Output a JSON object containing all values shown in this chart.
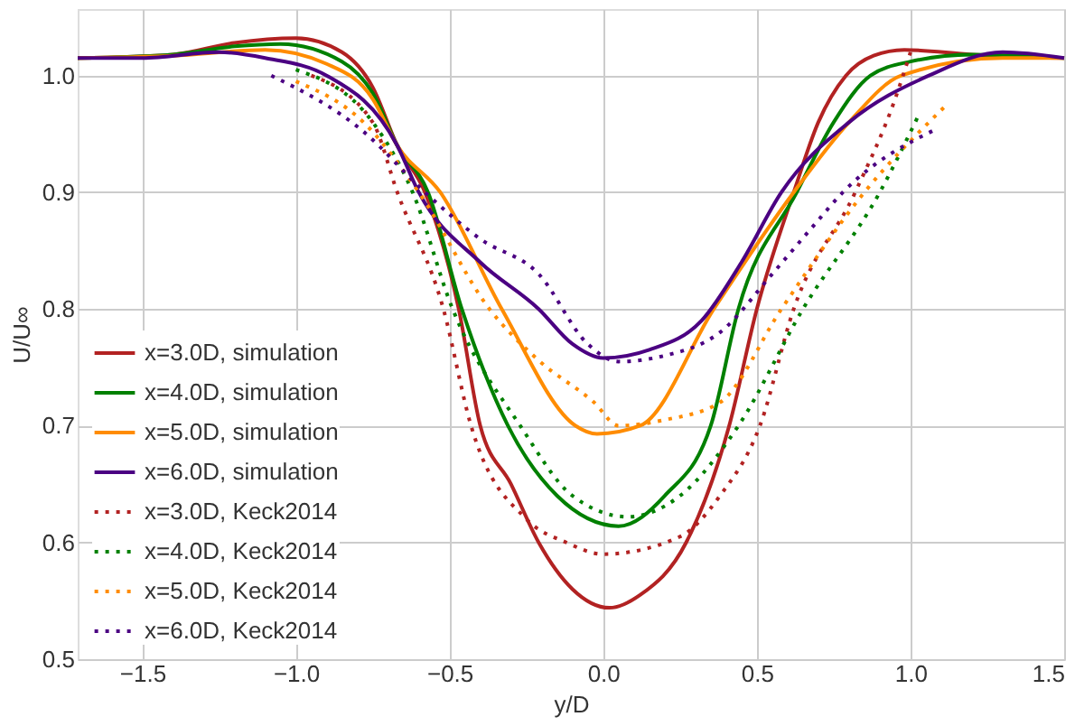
{
  "chart_data": {
    "type": "line",
    "xlabel": "y/D",
    "ylabel": "U/U∞",
    "xlim": [
      -1.71,
      1.5
    ],
    "ylim": [
      0.5,
      1.057
    ],
    "xticks": [
      {
        "value": -1.5,
        "label": "−1.5"
      },
      {
        "value": -1.0,
        "label": "−1.0"
      },
      {
        "value": -0.5,
        "label": "−0.5"
      },
      {
        "value": 0,
        "label": "0.0"
      },
      {
        "value": 0.5,
        "label": "0.5"
      },
      {
        "value": 1.0,
        "label": "1.0"
      },
      {
        "value": 1.5,
        "label": "1.5"
      }
    ],
    "yticks": [
      0.5,
      0.6,
      0.7,
      0.8,
      0.9,
      {
        "value": 1.0,
        "label": "1.0"
      }
    ],
    "grid": true,
    "legend": "bottom left",
    "marker": "none",
    "series": [
      {
        "name": "x=3.0D, simulation",
        "color": "#b22222",
        "line_style": "solid",
        "x": [
          -1.71,
          -1.4,
          -1.2,
          -1.0,
          -0.85,
          -0.75,
          -0.67,
          -0.58,
          -0.47,
          -0.4,
          -0.3,
          -0.21,
          -0.1,
          0.02,
          0.12,
          0.27,
          0.41,
          0.5,
          0.62,
          0.7,
          0.79,
          0.88,
          0.98,
          1.2,
          1.5
        ],
        "values": [
          1.015,
          1.018,
          1.028,
          1.032,
          1.02,
          0.99,
          0.94,
          0.9,
          0.8,
          0.7,
          0.65,
          0.6,
          0.56,
          0.544,
          0.555,
          0.6,
          0.7,
          0.8,
          0.9,
          0.96,
          1.0,
          1.017,
          1.022,
          1.018,
          1.015
        ]
      },
      {
        "name": "x=4.0D, simulation",
        "color": "#008000",
        "line_style": "solid",
        "x": [
          -1.71,
          -1.4,
          -1.2,
          -1.05,
          -0.85,
          -0.75,
          -0.67,
          -0.57,
          -0.46,
          -0.31,
          -0.15,
          0.05,
          0.2,
          0.35,
          0.44,
          0.63,
          0.75,
          0.87,
          1.0,
          1.2,
          1.5
        ],
        "values": [
          1.015,
          1.018,
          1.025,
          1.027,
          1.012,
          0.985,
          0.94,
          0.9,
          0.8,
          0.7,
          0.64,
          0.614,
          0.64,
          0.7,
          0.8,
          0.9,
          0.96,
          1.0,
          1.012,
          1.018,
          1.015
        ]
      },
      {
        "name": "x=5.0D, simulation",
        "color": "#ff8c00",
        "line_style": "solid",
        "x": [
          -1.71,
          -1.4,
          -1.1,
          -0.9,
          -0.75,
          -0.67,
          -0.53,
          -0.33,
          -0.09,
          -0.02,
          0.12,
          0.36,
          0.62,
          0.8,
          0.97,
          1.3,
          1.5
        ],
        "values": [
          1.015,
          1.017,
          1.022,
          1.01,
          0.98,
          0.94,
          0.9,
          0.8,
          0.7,
          0.693,
          0.7,
          0.8,
          0.9,
          0.96,
          1.0,
          1.015,
          1.015
        ]
      },
      {
        "name": "x=6.0D, simulation",
        "color": "#4b0082",
        "line_style": "solid",
        "x": [
          -1.71,
          -1.5,
          -1.25,
          -1.1,
          -0.9,
          -0.67,
          -0.6,
          -0.4,
          -0.21,
          -0.1,
          0.0,
          0.15,
          0.32,
          0.45,
          0.58,
          0.8,
          1.06,
          1.3,
          1.5
        ],
        "values": [
          1.015,
          1.015,
          1.02,
          1.015,
          1.0,
          0.94,
          0.9,
          0.84,
          0.8,
          0.77,
          0.758,
          0.765,
          0.79,
          0.84,
          0.9,
          0.96,
          1.0,
          1.02,
          1.015
        ]
      },
      {
        "name": "x=3.0D, Keck2014",
        "color": "#b22222",
        "line_style": "dotted",
        "x": [
          -0.95,
          -0.75,
          -0.67,
          -0.52,
          -0.43,
          -0.25,
          -0.12,
          0.0,
          0.25,
          0.38,
          0.51,
          0.62,
          0.82,
          0.95,
          1.0
        ],
        "values": [
          1.0,
          0.96,
          0.9,
          0.8,
          0.7,
          0.62,
          0.6,
          0.59,
          0.605,
          0.64,
          0.7,
          0.8,
          0.9,
          0.98,
          1.02
        ]
      },
      {
        "name": "x=4.0D, Keck2014",
        "color": "#008000",
        "line_style": "dotted",
        "x": [
          -1.0,
          -0.75,
          -0.62,
          -0.49,
          -0.27,
          -0.1,
          0.08,
          0.25,
          0.44,
          0.65,
          0.9,
          1.03
        ],
        "values": [
          1.005,
          0.96,
          0.9,
          0.8,
          0.7,
          0.64,
          0.622,
          0.64,
          0.7,
          0.8,
          0.9,
          0.968
        ]
      },
      {
        "name": "x=5.0D, Keck2014",
        "color": "#ff8c00",
        "line_style": "dotted",
        "x": [
          -1.0,
          -0.78,
          -0.6,
          -0.37,
          -0.21,
          -0.03,
          0.05,
          0.2,
          0.38,
          0.58,
          0.85,
          1.11
        ],
        "values": [
          0.995,
          0.96,
          0.9,
          0.8,
          0.756,
          0.72,
          0.7,
          0.705,
          0.72,
          0.8,
          0.9,
          0.973
        ]
      },
      {
        "name": "x=6.0D, Keck2014",
        "color": "#4b0082",
        "line_style": "dotted",
        "x": [
          -1.08,
          -0.78,
          -0.58,
          -0.4,
          -0.21,
          -0.05,
          0.05,
          0.2,
          0.38,
          0.55,
          0.68,
          0.78,
          1.09
        ],
        "values": [
          1.0,
          0.952,
          0.9,
          0.86,
          0.83,
          0.77,
          0.755,
          0.76,
          0.78,
          0.83,
          0.87,
          0.9,
          0.955
        ]
      }
    ]
  }
}
